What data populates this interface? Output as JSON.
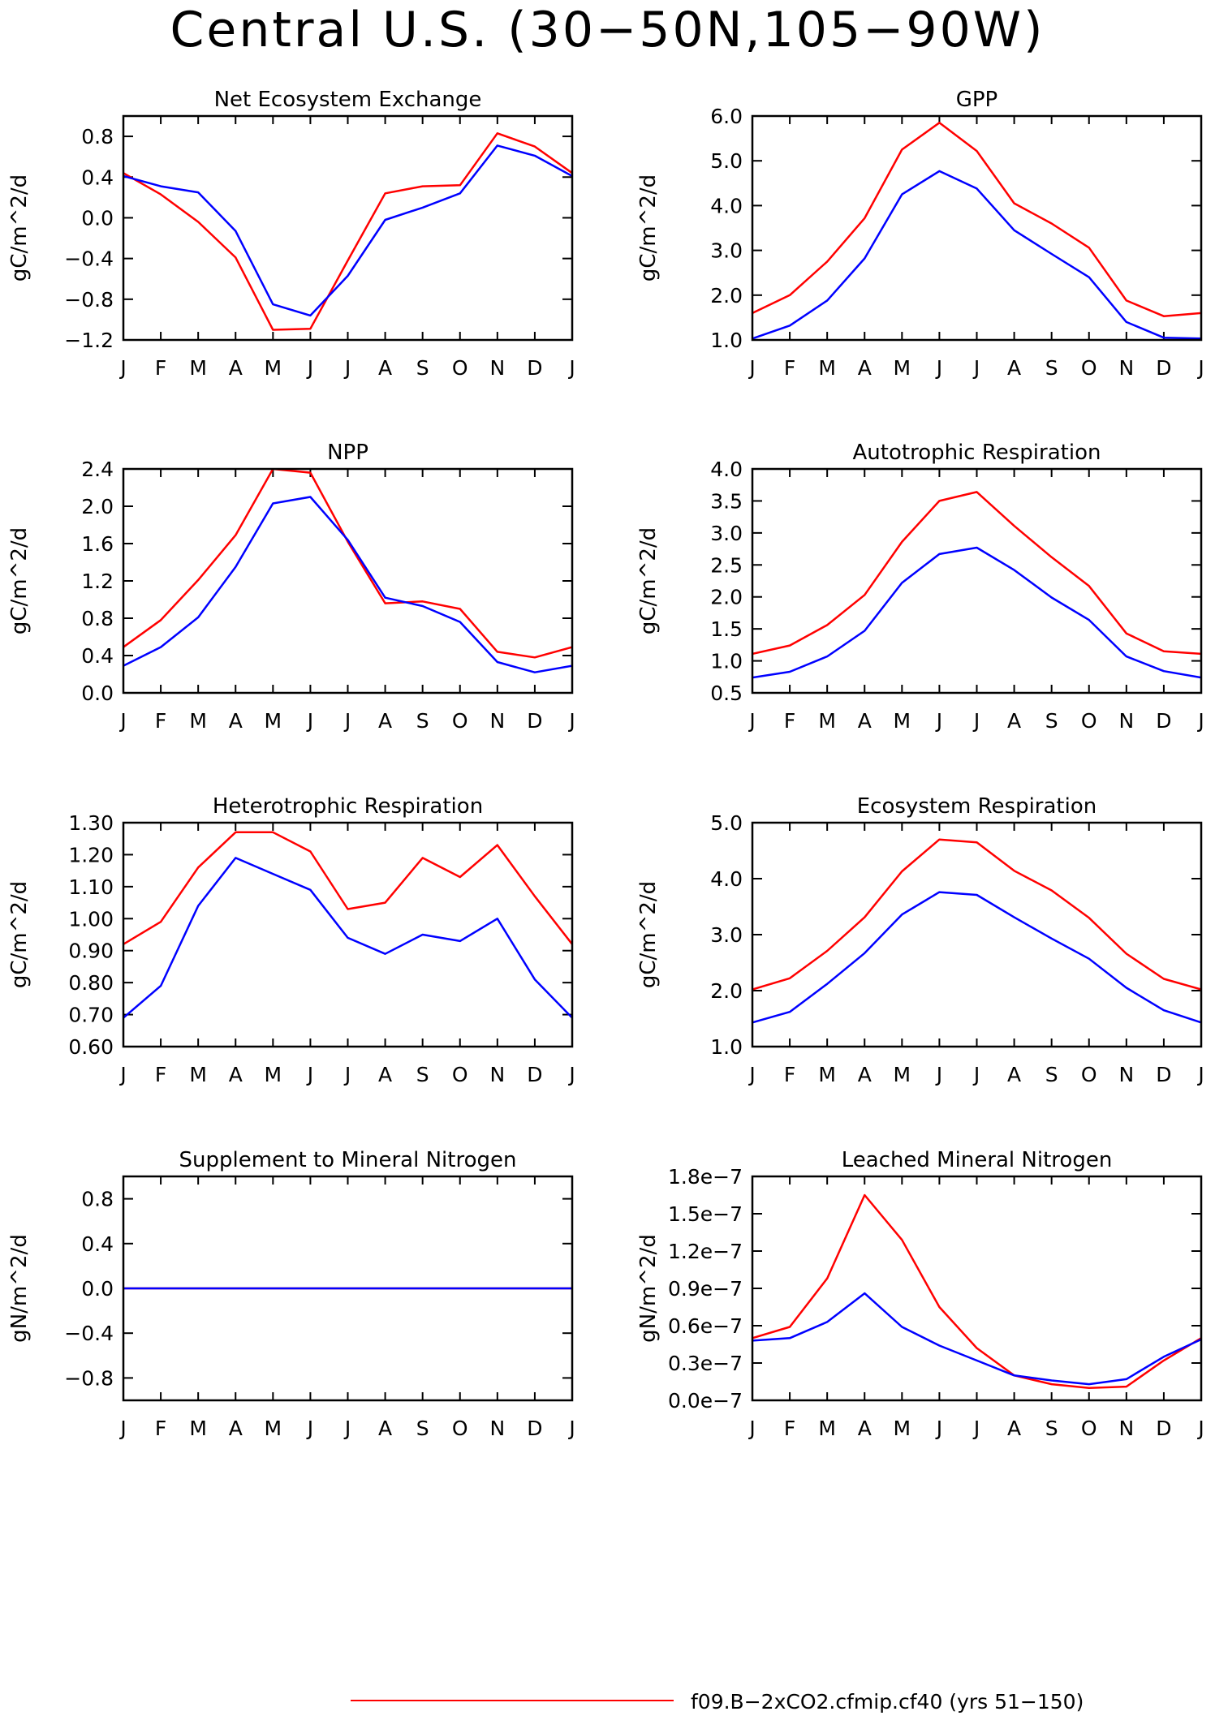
{
  "figure": {
    "title": "Central U.S. (30−50N,105−90W)",
    "legend": [
      {
        "label": "f09.B−2xCO2.cfmip.cf40 (yrs 51−150)",
        "color": "#ff0000"
      }
    ]
  },
  "chart_data": [
    {
      "type": "line",
      "title": "Net Ecosystem Exchange",
      "ylabel": "gC/m^2/d",
      "categories": [
        "J",
        "F",
        "M",
        "A",
        "M",
        "J",
        "J",
        "A",
        "S",
        "O",
        "N",
        "D",
        "J"
      ],
      "ylim": [
        -1.2,
        1.0
      ],
      "yticks": [
        "-1.2",
        "-0.8",
        "-0.4",
        "0.0",
        "0.4",
        "0.8"
      ],
      "ytick_values": [
        -1.2,
        -0.8,
        -0.4,
        0.0,
        0.4,
        0.8
      ],
      "series": [
        {
          "color": "#ff0000",
          "values": [
            0.44,
            0.23,
            -0.04,
            -0.39,
            -1.1,
            -1.09,
            -0.42,
            0.24,
            0.31,
            0.32,
            0.83,
            0.7,
            0.44
          ]
        },
        {
          "color": "#0000ff",
          "values": [
            0.41,
            0.31,
            0.25,
            -0.13,
            -0.85,
            -0.96,
            -0.57,
            -0.02,
            0.1,
            0.24,
            0.71,
            0.61,
            0.41
          ]
        }
      ]
    },
    {
      "type": "line",
      "title": "GPP",
      "ylabel": "gC/m^2/d",
      "categories": [
        "J",
        "F",
        "M",
        "A",
        "M",
        "J",
        "J",
        "A",
        "S",
        "O",
        "N",
        "D",
        "J"
      ],
      "ylim": [
        1.0,
        6.0
      ],
      "yticks": [
        "1.0",
        "2.0",
        "3.0",
        "4.0",
        "5.0",
        "6.0"
      ],
      "ytick_values": [
        1,
        2,
        3,
        4,
        5,
        6
      ],
      "series": [
        {
          "color": "#ff0000",
          "values": [
            1.6,
            2.0,
            2.75,
            3.72,
            5.25,
            5.85,
            5.22,
            4.05,
            3.6,
            3.06,
            1.88,
            1.53,
            1.6
          ]
        },
        {
          "color": "#0000ff",
          "values": [
            1.03,
            1.32,
            1.88,
            2.82,
            4.25,
            4.77,
            4.38,
            3.45,
            2.92,
            2.4,
            1.4,
            1.05,
            1.03
          ]
        }
      ]
    },
    {
      "type": "line",
      "title": "NPP",
      "ylabel": "gC/m^2/d",
      "categories": [
        "J",
        "F",
        "M",
        "A",
        "M",
        "J",
        "J",
        "A",
        "S",
        "O",
        "N",
        "D",
        "J"
      ],
      "ylim": [
        0.0,
        2.4
      ],
      "yticks": [
        "0.0",
        "0.4",
        "0.8",
        "1.2",
        "1.6",
        "2.0",
        "2.4"
      ],
      "ytick_values": [
        0,
        0.4,
        0.8,
        1.2,
        1.6,
        2.0,
        2.4
      ],
      "series": [
        {
          "color": "#ff0000",
          "values": [
            0.49,
            0.78,
            1.21,
            1.69,
            2.4,
            2.36,
            1.62,
            0.96,
            0.98,
            0.9,
            0.44,
            0.38,
            0.49
          ]
        },
        {
          "color": "#0000ff",
          "values": [
            0.29,
            0.49,
            0.81,
            1.35,
            2.03,
            2.1,
            1.64,
            1.02,
            0.93,
            0.76,
            0.33,
            0.22,
            0.29
          ]
        }
      ]
    },
    {
      "type": "line",
      "title": "Autotrophic Respiration",
      "ylabel": "gC/m^2/d",
      "categories": [
        "J",
        "F",
        "M",
        "A",
        "M",
        "J",
        "J",
        "A",
        "S",
        "O",
        "N",
        "D",
        "J"
      ],
      "ylim": [
        0.5,
        4.0
      ],
      "yticks": [
        "0.5",
        "1.0",
        "1.5",
        "2.0",
        "2.5",
        "3.0",
        "3.5",
        "4.0"
      ],
      "ytick_values": [
        0.5,
        1.0,
        1.5,
        2.0,
        2.5,
        3.0,
        3.5,
        4.0
      ],
      "series": [
        {
          "color": "#ff0000",
          "values": [
            1.11,
            1.24,
            1.56,
            2.03,
            2.86,
            3.5,
            3.64,
            3.11,
            2.62,
            2.17,
            1.43,
            1.15,
            1.11
          ]
        },
        {
          "color": "#0000ff",
          "values": [
            0.74,
            0.83,
            1.07,
            1.47,
            2.22,
            2.67,
            2.77,
            2.42,
            1.99,
            1.64,
            1.07,
            0.84,
            0.74
          ]
        }
      ]
    },
    {
      "type": "line",
      "title": "Heterotrophic Respiration",
      "ylabel": "gC/m^2/d",
      "categories": [
        "J",
        "F",
        "M",
        "A",
        "M",
        "J",
        "J",
        "A",
        "S",
        "O",
        "N",
        "D",
        "J"
      ],
      "ylim": [
        0.6,
        1.3
      ],
      "yticks": [
        "0.60",
        "0.70",
        "0.80",
        "0.90",
        "1.00",
        "1.10",
        "1.20",
        "1.30"
      ],
      "ytick_values": [
        0.6,
        0.7,
        0.8,
        0.9,
        1.0,
        1.1,
        1.2,
        1.3
      ],
      "series": [
        {
          "color": "#ff0000",
          "values": [
            0.92,
            0.99,
            1.16,
            1.27,
            1.27,
            1.21,
            1.03,
            1.05,
            1.19,
            1.13,
            1.23,
            1.07,
            0.92
          ]
        },
        {
          "color": "#0000ff",
          "values": [
            0.69,
            0.79,
            1.04,
            1.19,
            1.14,
            1.09,
            0.94,
            0.89,
            0.95,
            0.93,
            1.0,
            0.81,
            0.69
          ]
        }
      ]
    },
    {
      "type": "line",
      "title": "Ecosystem Respiration",
      "ylabel": "gC/m^2/d",
      "categories": [
        "J",
        "F",
        "M",
        "A",
        "M",
        "J",
        "J",
        "A",
        "S",
        "O",
        "N",
        "D",
        "J"
      ],
      "ylim": [
        1.0,
        5.0
      ],
      "yticks": [
        "1.0",
        "2.0",
        "3.0",
        "4.0",
        "5.0"
      ],
      "ytick_values": [
        1,
        2,
        3,
        4,
        5
      ],
      "series": [
        {
          "color": "#ff0000",
          "values": [
            2.02,
            2.22,
            2.71,
            3.31,
            4.13,
            4.7,
            4.65,
            4.14,
            3.79,
            3.3,
            2.66,
            2.21,
            2.02
          ]
        },
        {
          "color": "#0000ff",
          "values": [
            1.43,
            1.62,
            2.12,
            2.67,
            3.36,
            3.76,
            3.71,
            3.31,
            2.93,
            2.57,
            2.05,
            1.65,
            1.43
          ]
        }
      ]
    },
    {
      "type": "line",
      "title": "Supplement to Mineral Nitrogen",
      "ylabel": "gN/m^2/d",
      "categories": [
        "J",
        "F",
        "M",
        "A",
        "M",
        "J",
        "J",
        "A",
        "S",
        "O",
        "N",
        "D",
        "J"
      ],
      "ylim": [
        -1.0,
        1.0
      ],
      "yticks": [
        "-0.8",
        "-0.4",
        "0.0",
        "0.4",
        "0.8"
      ],
      "ytick_values": [
        -0.8,
        -0.4,
        0.0,
        0.4,
        0.8
      ],
      "series": [
        {
          "color": "#ff0000",
          "values": [
            0,
            0,
            0,
            0,
            0,
            0,
            0,
            0,
            0,
            0,
            0,
            0,
            0
          ]
        },
        {
          "color": "#0000ff",
          "values": [
            0,
            0,
            0,
            0,
            0,
            0,
            0,
            0,
            0,
            0,
            0,
            0,
            0
          ]
        }
      ]
    },
    {
      "type": "line",
      "title": "Leached Mineral Nitrogen",
      "ylabel": "gN/m^2/d",
      "categories": [
        "J",
        "F",
        "M",
        "A",
        "M",
        "J",
        "J",
        "A",
        "S",
        "O",
        "N",
        "D",
        "J"
      ],
      "ylim": [
        0.0,
        1.8
      ],
      "yticks": [
        "0.0e-7",
        "0.3e-7",
        "0.6e-7",
        "0.9e-7",
        "1.2e-7",
        "1.5e-7",
        "1.8e-7"
      ],
      "ytick_values": [
        0,
        0.3,
        0.6,
        0.9,
        1.2,
        1.5,
        1.8
      ],
      "series": [
        {
          "color": "#ff0000",
          "values": [
            0.5,
            0.59,
            0.98,
            1.65,
            1.29,
            0.75,
            0.42,
            0.2,
            0.13,
            0.1,
            0.11,
            0.32,
            0.5
          ]
        },
        {
          "color": "#0000ff",
          "values": [
            0.48,
            0.5,
            0.63,
            0.86,
            0.59,
            0.44,
            0.32,
            0.2,
            0.16,
            0.13,
            0.17,
            0.35,
            0.49
          ]
        }
      ]
    }
  ]
}
